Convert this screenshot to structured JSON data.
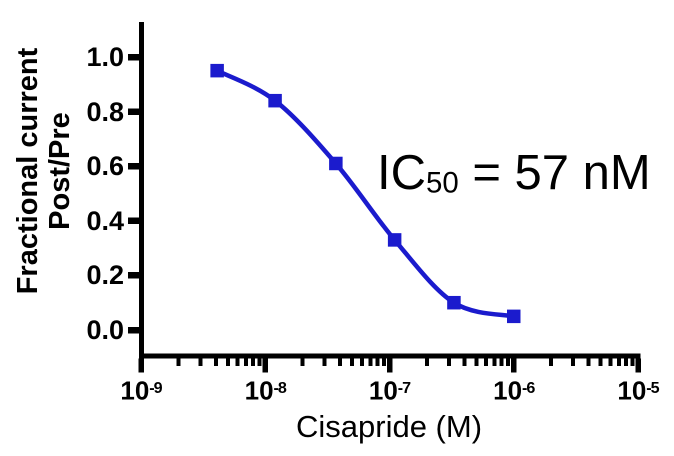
{
  "chart_data": {
    "type": "line",
    "title": "",
    "xlabel": "Cisapride (M)",
    "ylabel": [
      "Fractional current",
      "Post/Pre"
    ],
    "x_scale": "log10",
    "xlim_log10": [
      -9,
      -5
    ],
    "ylim": [
      0,
      1.05
    ],
    "grid": false,
    "legend": "none",
    "x_tick_base": "10",
    "x_tick_exponents": [
      "-9",
      "-8",
      "-7",
      "-6",
      "-5"
    ],
    "y_ticks": [
      {
        "label": "1.0",
        "value": 1.0
      },
      {
        "label": "0.8",
        "value": 0.8
      },
      {
        "label": "0.6",
        "value": 0.6
      },
      {
        "label": "0.4",
        "value": 0.4
      },
      {
        "label": "0.2",
        "value": 0.2
      },
      {
        "label": "0.0",
        "value": 0.0
      }
    ],
    "series": [
      {
        "name": "cisapride-dose-response",
        "marker": "square",
        "marker_size_px": 13.5,
        "color": "#1b1bcd",
        "points": [
          {
            "x_M": 4.1e-09,
            "y": 0.95
          },
          {
            "x_M": 1.2e-08,
            "y": 0.84
          },
          {
            "x_M": 3.7e-08,
            "y": 0.61
          },
          {
            "x_M": 1.1e-07,
            "y": 0.33
          },
          {
            "x_M": 3.3e-07,
            "y": 0.1
          },
          {
            "x_M": 1e-06,
            "y": 0.05
          }
        ]
      }
    ],
    "annotation": {
      "prefix": "IC",
      "subscript": "50",
      "suffix": " = 57 nM"
    },
    "axis_color": "#000000",
    "text_color": "#000000",
    "background": "#ffffff"
  }
}
